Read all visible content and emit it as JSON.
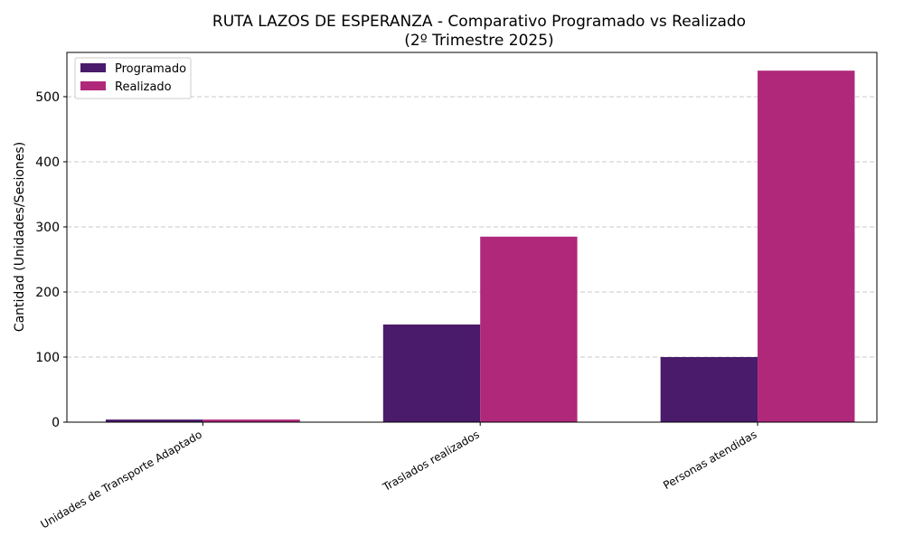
{
  "chart_data": {
    "type": "bar",
    "title": "RUTA LAZOS DE ESPERANZA - Comparativo Programado vs Realizado",
    "subtitle": "(2º Trimestre 2025)",
    "xlabel": "",
    "ylabel": "Cantidad (Unidades/Sesiones)",
    "categories": [
      "Unidades de Transporte Adaptado",
      "Traslados realizados",
      "Personas atendidas"
    ],
    "series": [
      {
        "name": "Programado",
        "values": [
          4,
          150,
          100
        ],
        "color": "#4a1a6b"
      },
      {
        "name": "Realizado",
        "values": [
          4,
          285,
          540
        ],
        "color": "#b0287a"
      }
    ],
    "ylim": [
      0,
      568
    ],
    "yticks": [
      0,
      100,
      200,
      300,
      400,
      500
    ],
    "grid": "y dashed",
    "legend": "top-left"
  }
}
